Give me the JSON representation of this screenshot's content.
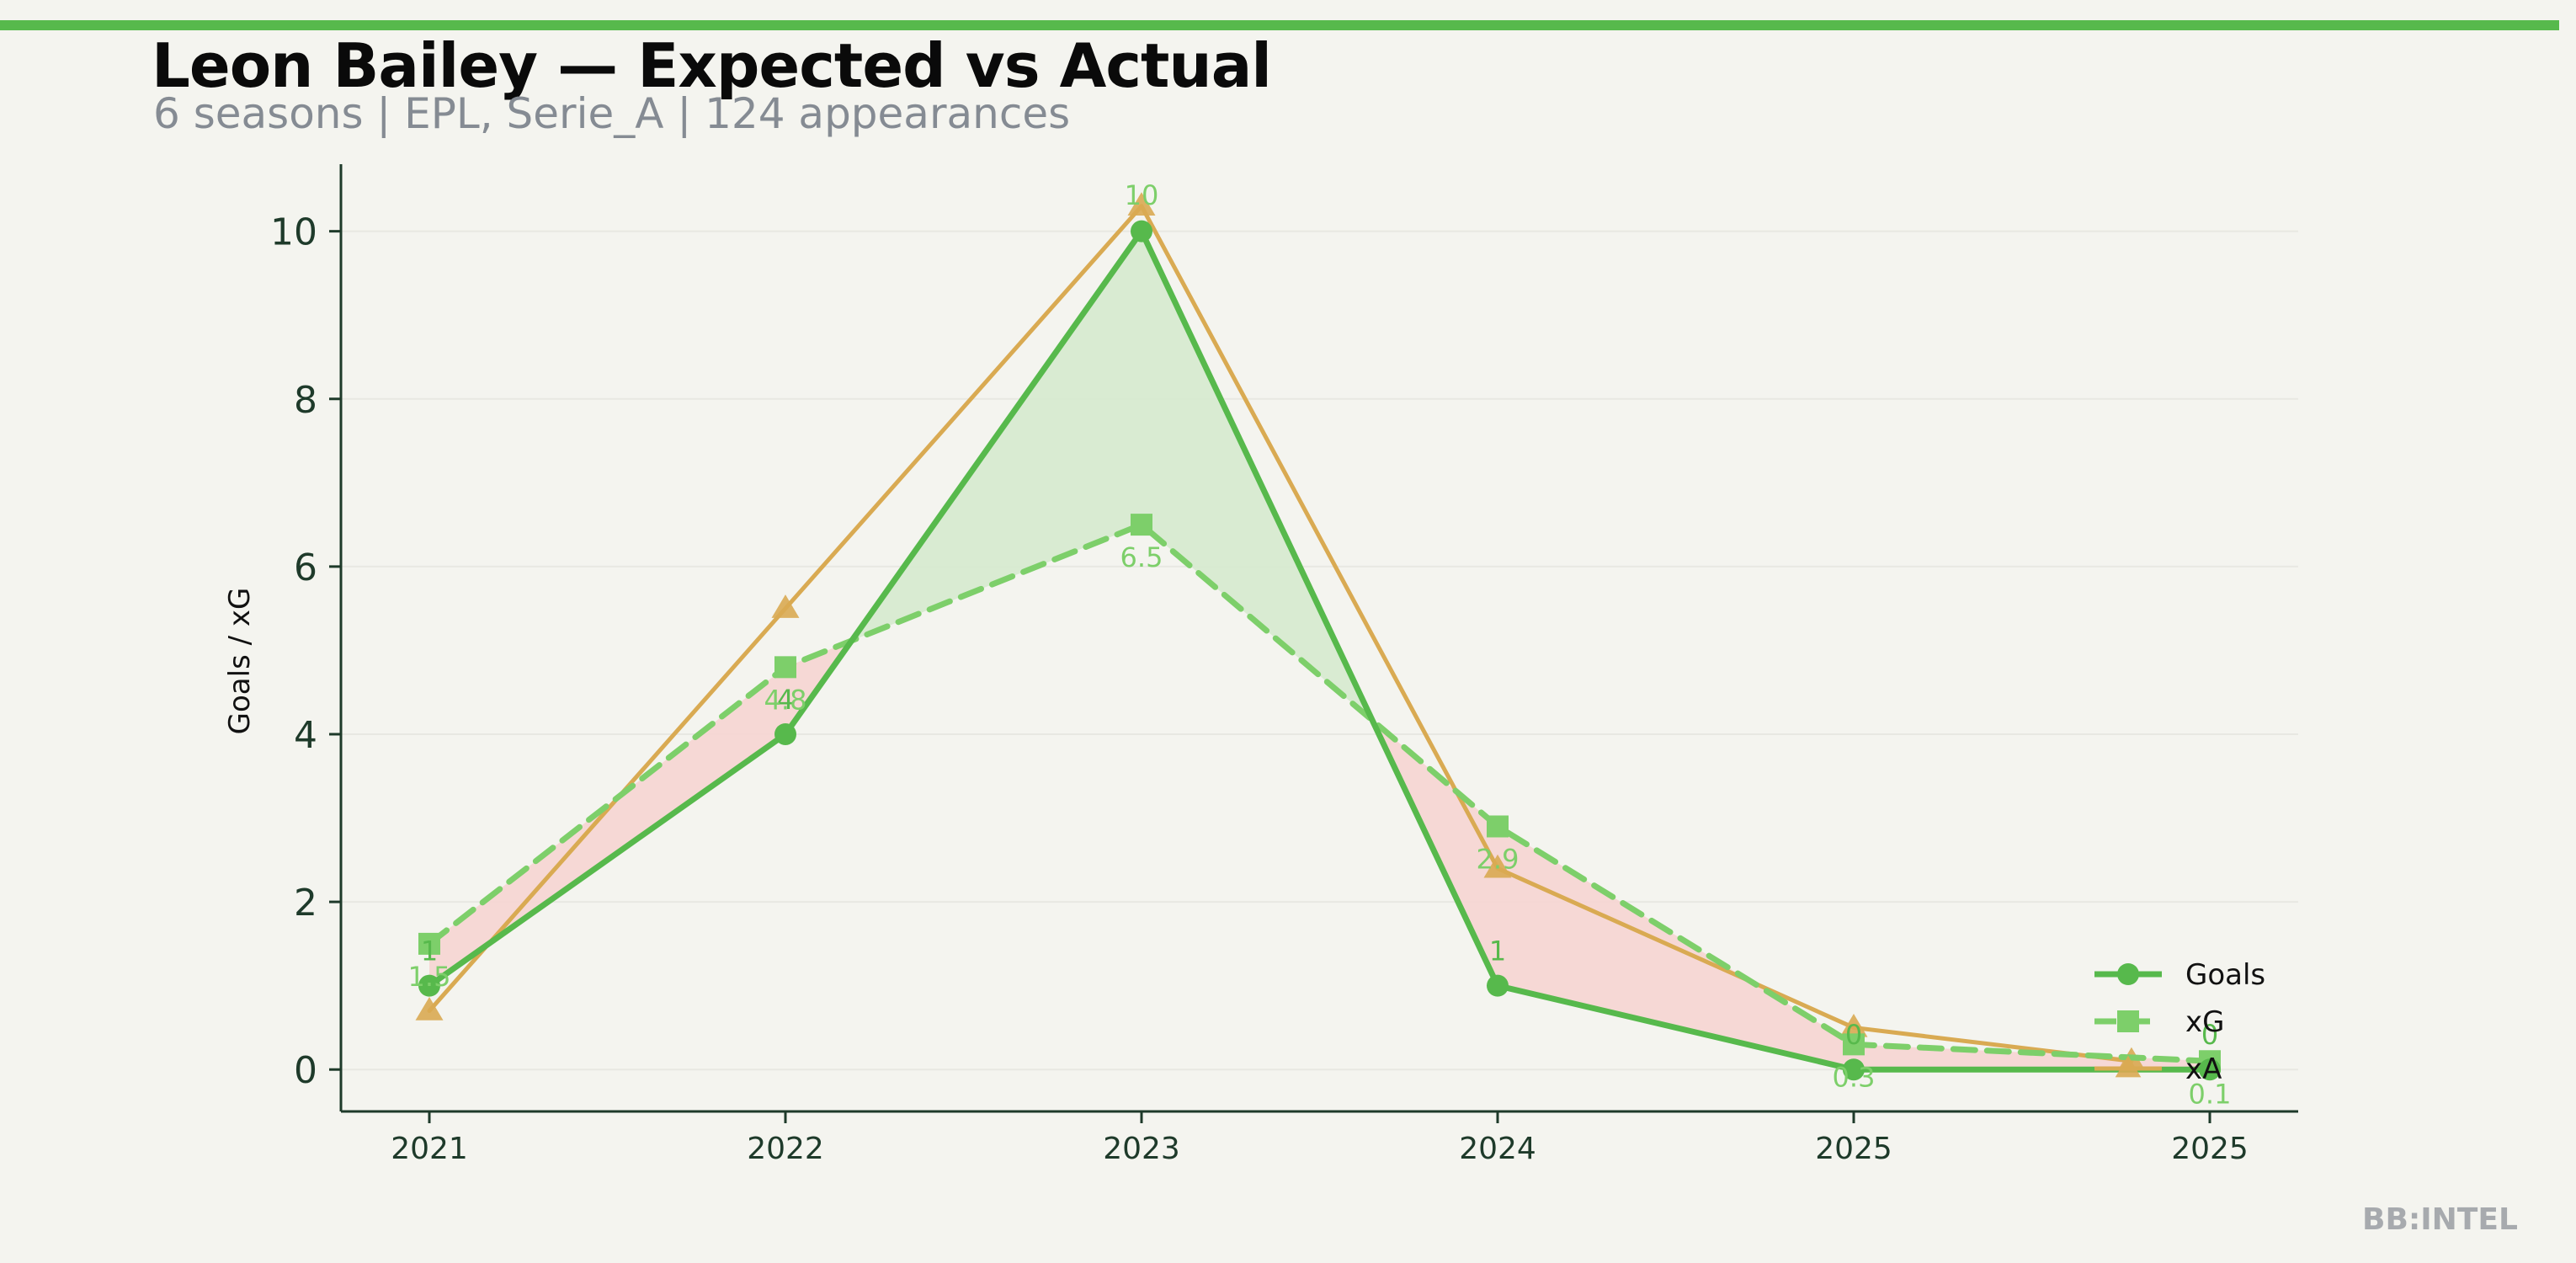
{
  "header": {
    "title": "Leon Bailey — Expected vs Actual",
    "subtitle": "6 seasons | EPL, Serie_A | 124 appearances"
  },
  "brand": "BB:INTEL",
  "colors": {
    "goals": "#57b94c",
    "xg": "#7dcf6a",
    "xa": "#d9aa52",
    "over_fill": "#d7ead0",
    "under_fill": "#f5d6d3",
    "axis": "#1e3a2a",
    "background": "#f4f4ef"
  },
  "chart_data": {
    "type": "line",
    "ylabel": "Goals / xG",
    "ylim": [
      -0.5,
      10.8
    ],
    "yticks": [
      0,
      2,
      4,
      6,
      8,
      10
    ],
    "x": [
      "2021",
      "2022",
      "2023",
      "2024",
      "2025",
      "2025"
    ],
    "grid": "horizontal-faint",
    "legend_position": "bottom-right",
    "series": [
      {
        "name": "Goals",
        "key": "goals",
        "marker": "circle",
        "line": "solid",
        "values": [
          1,
          4,
          10,
          1,
          0,
          0
        ],
        "labels": [
          "1",
          "4",
          "",
          "1",
          "0",
          "0"
        ]
      },
      {
        "name": "xG",
        "key": "xg",
        "marker": "square",
        "line": "dashed",
        "values": [
          1.5,
          4.8,
          6.5,
          2.9,
          0.3,
          0.1
        ],
        "labels": [
          "1.5",
          "4.8",
          "6.5",
          "2.9",
          "0.3",
          "0.1"
        ]
      },
      {
        "name": "xA",
        "key": "xa",
        "marker": "triangle",
        "line": "solid",
        "values": [
          0.7,
          5.5,
          10.3,
          2.4,
          0.5,
          0.1
        ],
        "labels": [
          "",
          "",
          "10",
          "",
          "",
          ""
        ],
        "x_offsets": [
          0,
          0,
          0,
          0,
          0,
          -0.22
        ]
      }
    ]
  }
}
